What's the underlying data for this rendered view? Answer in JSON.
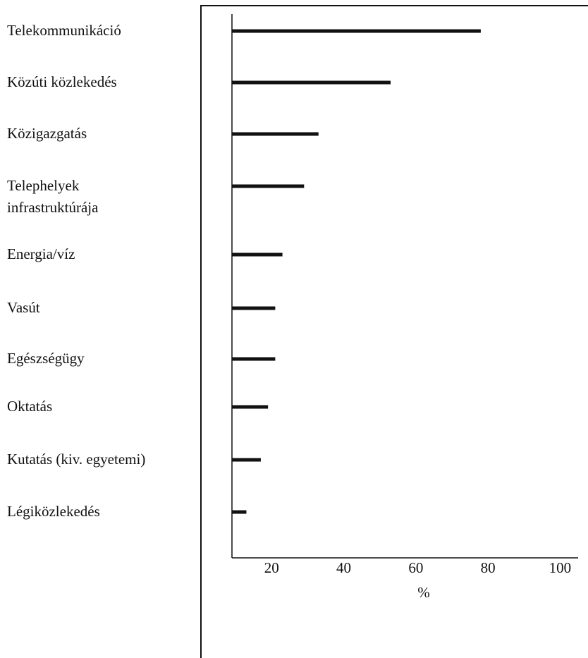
{
  "chart_data": {
    "type": "bar",
    "orientation": "horizontal",
    "categories": [
      "Telekommunikáció",
      "Közúti közlekedés",
      "Közigazgatás",
      "Telephelyek\ninfrastruktúrája",
      "Energia/víz",
      "Vasút",
      "Egészségügy",
      "Oktatás",
      "Kutatás (kiv. egyetemi)",
      "Légiközlekedés"
    ],
    "values": [
      78,
      53,
      33,
      29,
      23,
      21,
      21,
      19,
      17,
      13
    ],
    "color": "#111111",
    "xlabel": "%",
    "xlim": [
      9,
      105
    ],
    "xticks": [
      20,
      40,
      60,
      80,
      100
    ],
    "grid": false
  }
}
